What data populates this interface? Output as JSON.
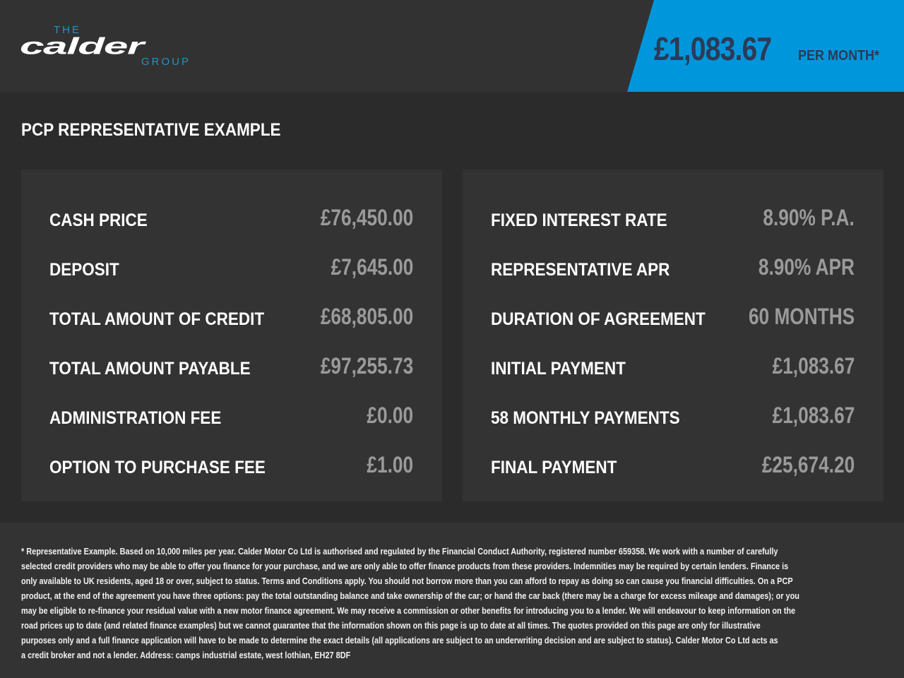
{
  "brand": {
    "logo_the": "THE",
    "logo_main": "calder",
    "logo_group": "GROUP",
    "accent": "#0096dc",
    "logo_blue": "#2a8fc0"
  },
  "header": {
    "price": "£1,083.67",
    "per_month": "PER MONTH*"
  },
  "title": "PCP REPRESENTATIVE EXAMPLE",
  "left_rows": [
    {
      "label": "CASH PRICE",
      "value": "£76,450.00"
    },
    {
      "label": "DEPOSIT",
      "value": "£7,645.00"
    },
    {
      "label": "TOTAL AMOUNT OF CREDIT",
      "value": "£68,805.00"
    },
    {
      "label": "TOTAL AMOUNT PAYABLE",
      "value": "£97,255.73"
    },
    {
      "label": "ADMINISTRATION FEE",
      "value": "£0.00"
    },
    {
      "label": "OPTION TO PURCHASE FEE",
      "value": "£1.00"
    }
  ],
  "right_rows": [
    {
      "label": "FIXED INTEREST RATE",
      "value": "8.90% P.A."
    },
    {
      "label": "REPRESENTATIVE APR",
      "value": "8.90% APR"
    },
    {
      "label": "DURATION OF AGREEMENT",
      "value": "60 MONTHS"
    },
    {
      "label": "INITIAL PAYMENT",
      "value": "£1,083.67"
    },
    {
      "label": "58 MONTHLY PAYMENTS",
      "value": "£1,083.67"
    },
    {
      "label": "FINAL PAYMENT",
      "value": "£25,674.20"
    }
  ],
  "disclaimer": [
    "* Representative Example. Based on 10,000 miles per year. Calder Motor Co Ltd is authorised and regulated by the Financial Conduct Authority, registered number 659358. We work with a number of carefully",
    "selected credit providers who may be able to offer you finance for your purchase, and we are only able to offer finance products from these providers. Indemnities may be required by certain lenders. Finance is",
    "only available to UK residents, aged 18 or over, subject to status. Terms and Conditions apply. You should not borrow more than you can afford to repay as doing so can cause you financial difficulties. On a PCP",
    "product, at the end of the agreement you have three options: pay the total outstanding balance and take ownership of the car; or hand the car back (there may be a charge for excess mileage and damages); or you",
    "may be eligible to re-finance your residual value with a new motor finance agreement. We may receive a commission or other benefits for introducing you to a lender. We will endeavour to keep information on the",
    "road prices up to date (and related finance examples) but we cannot guarantee that the information shown on this page is up to date at all times. The quotes provided on this page are only for illustrative",
    "purposes only and a full finance application will have to be made to determine the exact details (all applications are subject to an underwriting decision and are subject to status). Calder Motor Co Ltd acts as",
    "a credit broker and not a lender. Address: camps industrial estate, west lothian, EH27 8DF"
  ]
}
